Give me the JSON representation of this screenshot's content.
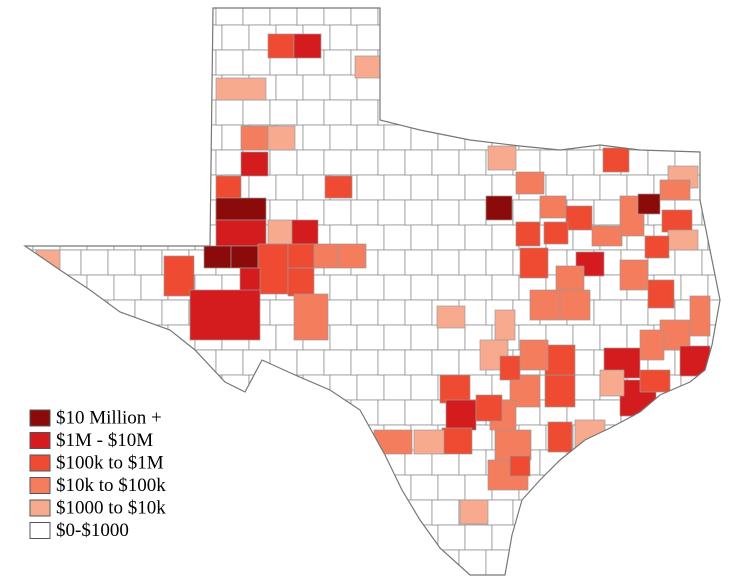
{
  "legend": {
    "items": [
      {
        "label": "$10 Million +",
        "color": "#8b0a0a"
      },
      {
        "label": "$1M  - $10M",
        "color": "#d41c1f"
      },
      {
        "label": "$100k to $1M",
        "color": "#ef4b32"
      },
      {
        "label": "$10k to $100k",
        "color": "#f47d5e"
      },
      {
        "label": "$1000 to $10k",
        "color": "#f7aa8e"
      },
      {
        "label": "$0-$1000",
        "color": "#ffffff"
      }
    ]
  }
}
